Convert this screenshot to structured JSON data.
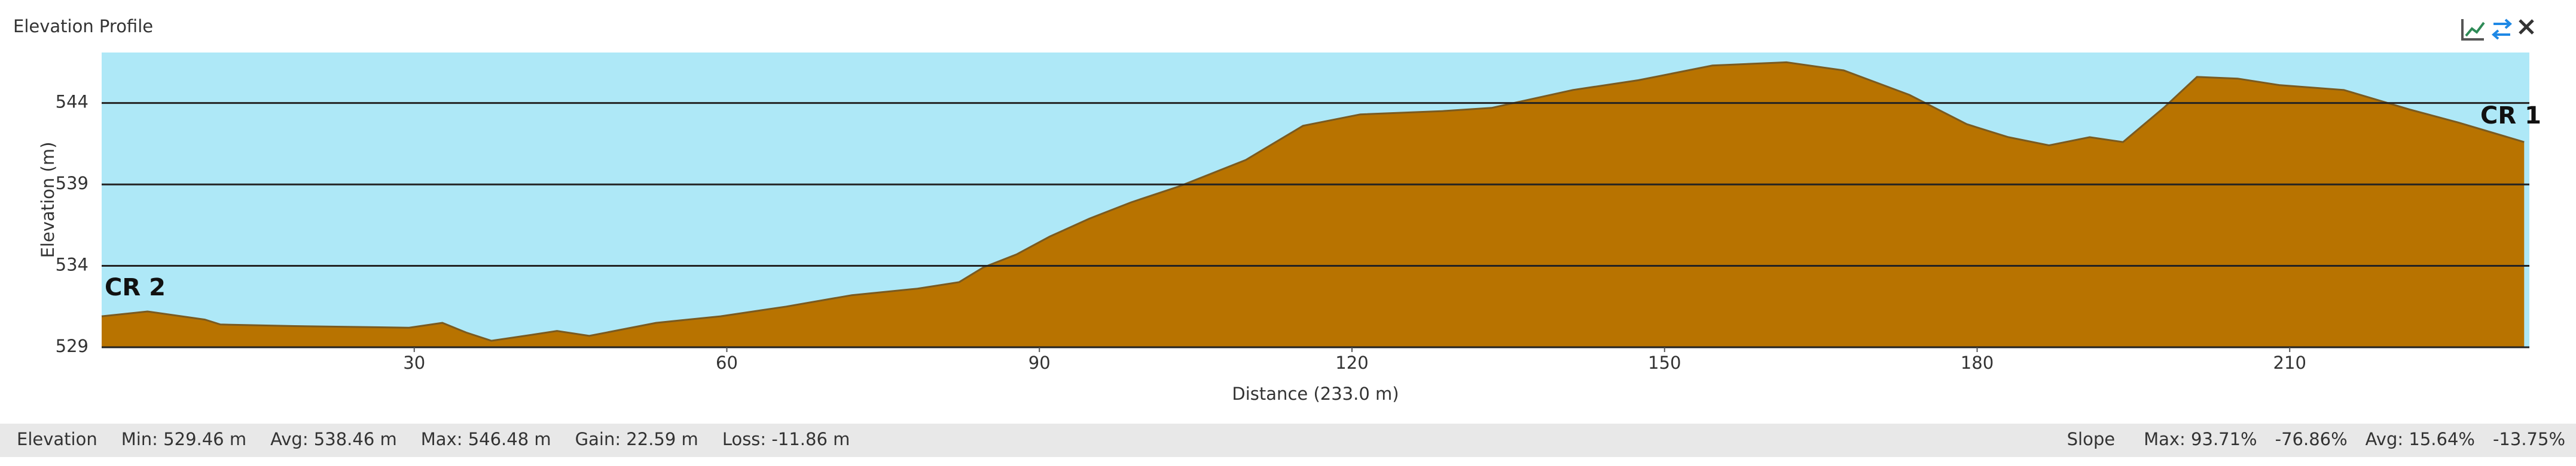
{
  "panel_title": "Elevation Profile",
  "chart_data": {
    "type": "area",
    "x_label": "Distance (233.0 m)",
    "y_label": "Elevation (m)",
    "annotations": [
      "CR 2",
      "CR 1"
    ],
    "x": [
      0,
      4.4,
      9.9,
      11.4,
      18.5,
      29.5,
      32.7,
      35,
      37.4,
      40.6,
      43.7,
      46.8,
      53.2,
      59.4,
      65.7,
      72,
      78.3,
      82.3,
      84.6,
      87.8,
      91,
      94.8,
      98.8,
      103.5,
      109.8,
      115.3,
      120.8,
      128.6,
      133.4,
      141.2,
      147.5,
      154.6,
      161.7,
      167.2,
      173.5,
      179,
      183,
      186.9,
      190.8,
      194,
      197.9,
      201.1,
      205,
      209,
      215.2,
      221.5,
      226.2,
      232.5
    ],
    "values": [
      530.9,
      531.2,
      530.7,
      530.4,
      530.3,
      530.2,
      530.5,
      529.9,
      529.4,
      529.7,
      530.0,
      529.7,
      530.5,
      530.9,
      531.5,
      532.2,
      532.6,
      533.0,
      533.9,
      534.7,
      535.8,
      536.9,
      537.9,
      538.9,
      540.5,
      542.6,
      543.3,
      543.5,
      543.7,
      544.8,
      545.4,
      546.3,
      546.5,
      546.0,
      544.5,
      542.7,
      541.9,
      541.4,
      541.9,
      541.6,
      543.7,
      545.6,
      545.5,
      545.1,
      544.8,
      543.6,
      542.8,
      541.6
    ],
    "color": "#b87300",
    "line_color": "#7a5a20",
    "background": "#aee8f7",
    "xlim": [
      0,
      233
    ],
    "xticks": [
      30,
      60,
      90,
      120,
      150,
      180,
      210
    ],
    "ylim": [
      529,
      547.1
    ],
    "yticks": [
      529,
      534,
      539,
      544
    ],
    "grid": true
  },
  "status_left": [
    "Elevation",
    "Min: 529.46 m",
    "Avg: 538.46 m",
    "Max: 546.48 m",
    "Gain: 22.59 m",
    "Loss: -11.86 m"
  ],
  "status_right": [
    "Slope",
    "Max: 93.71%",
    "-76.86%",
    "Avg: 15.64%",
    "-13.75%"
  ]
}
